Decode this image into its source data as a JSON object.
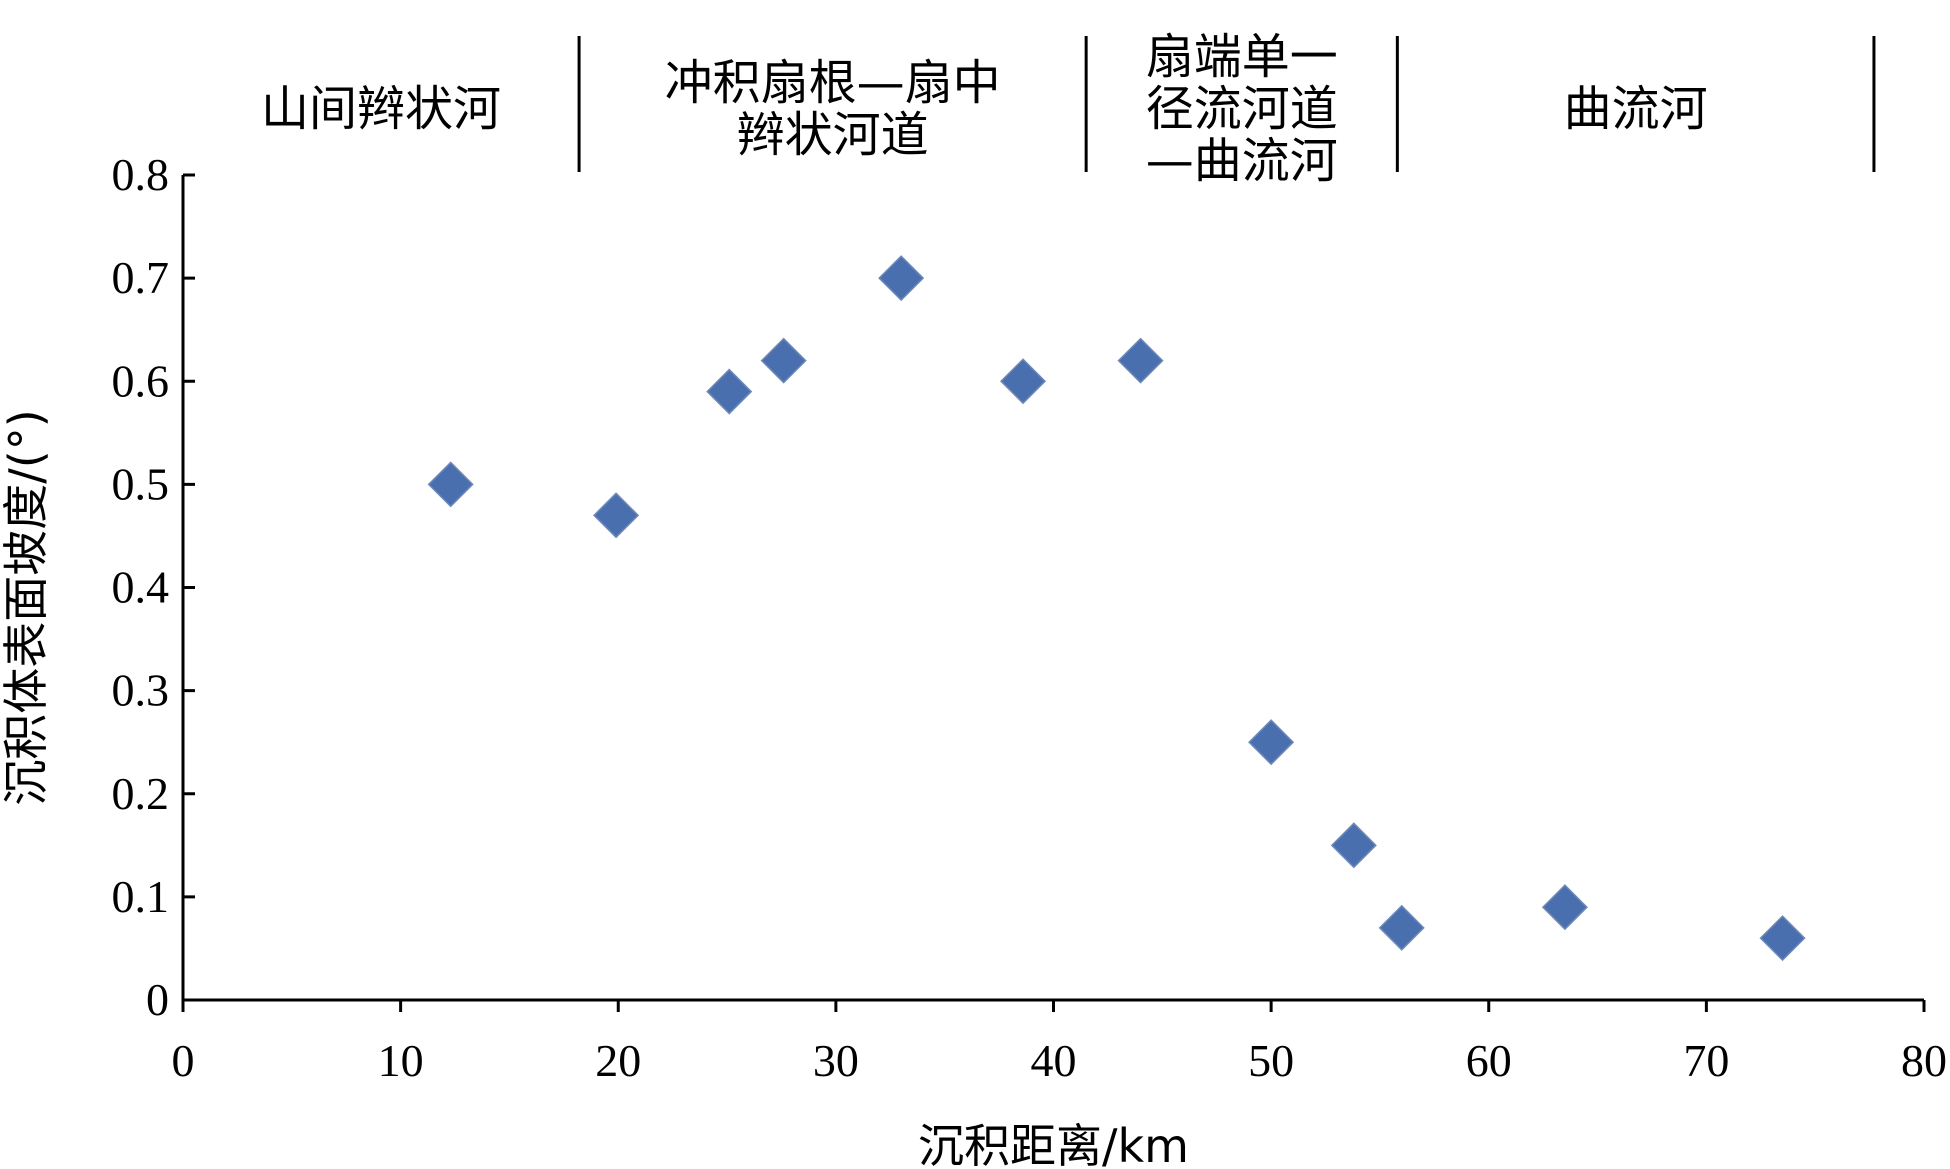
{
  "chart_data": {
    "type": "scatter",
    "title": "",
    "xlabel": "沉积距离/km",
    "ylabel": "沉积体表面坡度/(°)",
    "xlim": [
      0,
      80
    ],
    "ylim": [
      0,
      0.8
    ],
    "x_ticks": [
      "0",
      "10",
      "20",
      "30",
      "40",
      "50",
      "60",
      "70",
      "80"
    ],
    "y_ticks": [
      "0",
      "0.1",
      "0.2",
      "0.3",
      "0.4",
      "0.5",
      "0.6",
      "0.7",
      "0.8"
    ],
    "grid": false,
    "legend": "none",
    "marker": "diamond",
    "color": "#4a6fae",
    "series": [
      {
        "x": [
          12.3,
          19.9,
          25.1,
          27.6,
          33.0,
          38.6,
          44.0,
          50.0,
          53.8,
          56.0,
          63.5,
          73.5
        ],
        "y": [
          0.5,
          0.47,
          0.59,
          0.62,
          0.7,
          0.6,
          0.62,
          0.25,
          0.15,
          0.07,
          0.09,
          0.06
        ]
      }
    ],
    "zone_dividers_x": [
      18.2,
      41.5,
      55.8,
      77.7
    ],
    "zones": [
      {
        "lines": [
          "山间辫状河"
        ],
        "x_from": 0,
        "x_to": 18.2
      },
      {
        "lines": [
          "冲积扇根—扇中",
          "辫状河道"
        ],
        "x_from": 18.2,
        "x_to": 41.5
      },
      {
        "lines": [
          "扇端单一",
          "径流河道",
          "—曲流河"
        ],
        "x_from": 41.5,
        "x_to": 55.8
      },
      {
        "lines": [
          "曲流河"
        ],
        "x_from": 55.8,
        "x_to": 77.7
      }
    ]
  }
}
